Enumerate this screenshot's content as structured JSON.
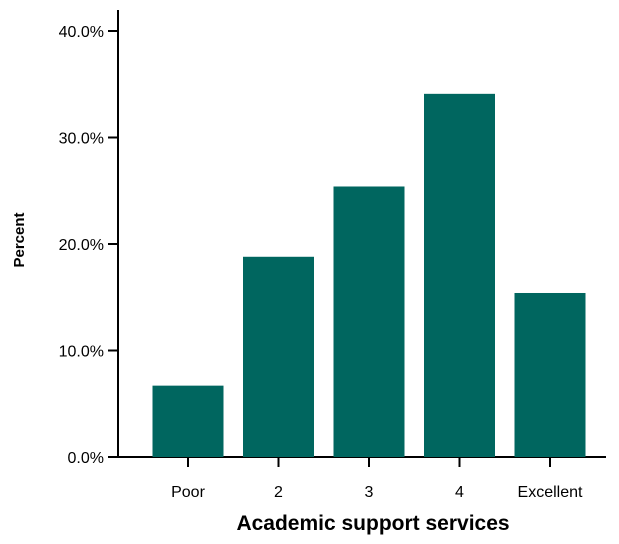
{
  "chart_data": {
    "type": "bar",
    "categories": [
      "Poor",
      "2",
      "3",
      "4",
      "Excellent"
    ],
    "values": [
      6.7,
      18.8,
      25.4,
      34.1,
      15.4
    ],
    "xlabel": "Academic support services",
    "ylabel": "Percent",
    "ylim": [
      0,
      42
    ],
    "yticks": [
      0,
      10,
      20,
      30,
      40
    ],
    "ytick_labels": [
      "0.0%",
      "10.0%",
      "20.0%",
      "30.0%",
      "40.0%"
    ],
    "grid": false,
    "legend": "none",
    "bar_color": "#00665f"
  }
}
